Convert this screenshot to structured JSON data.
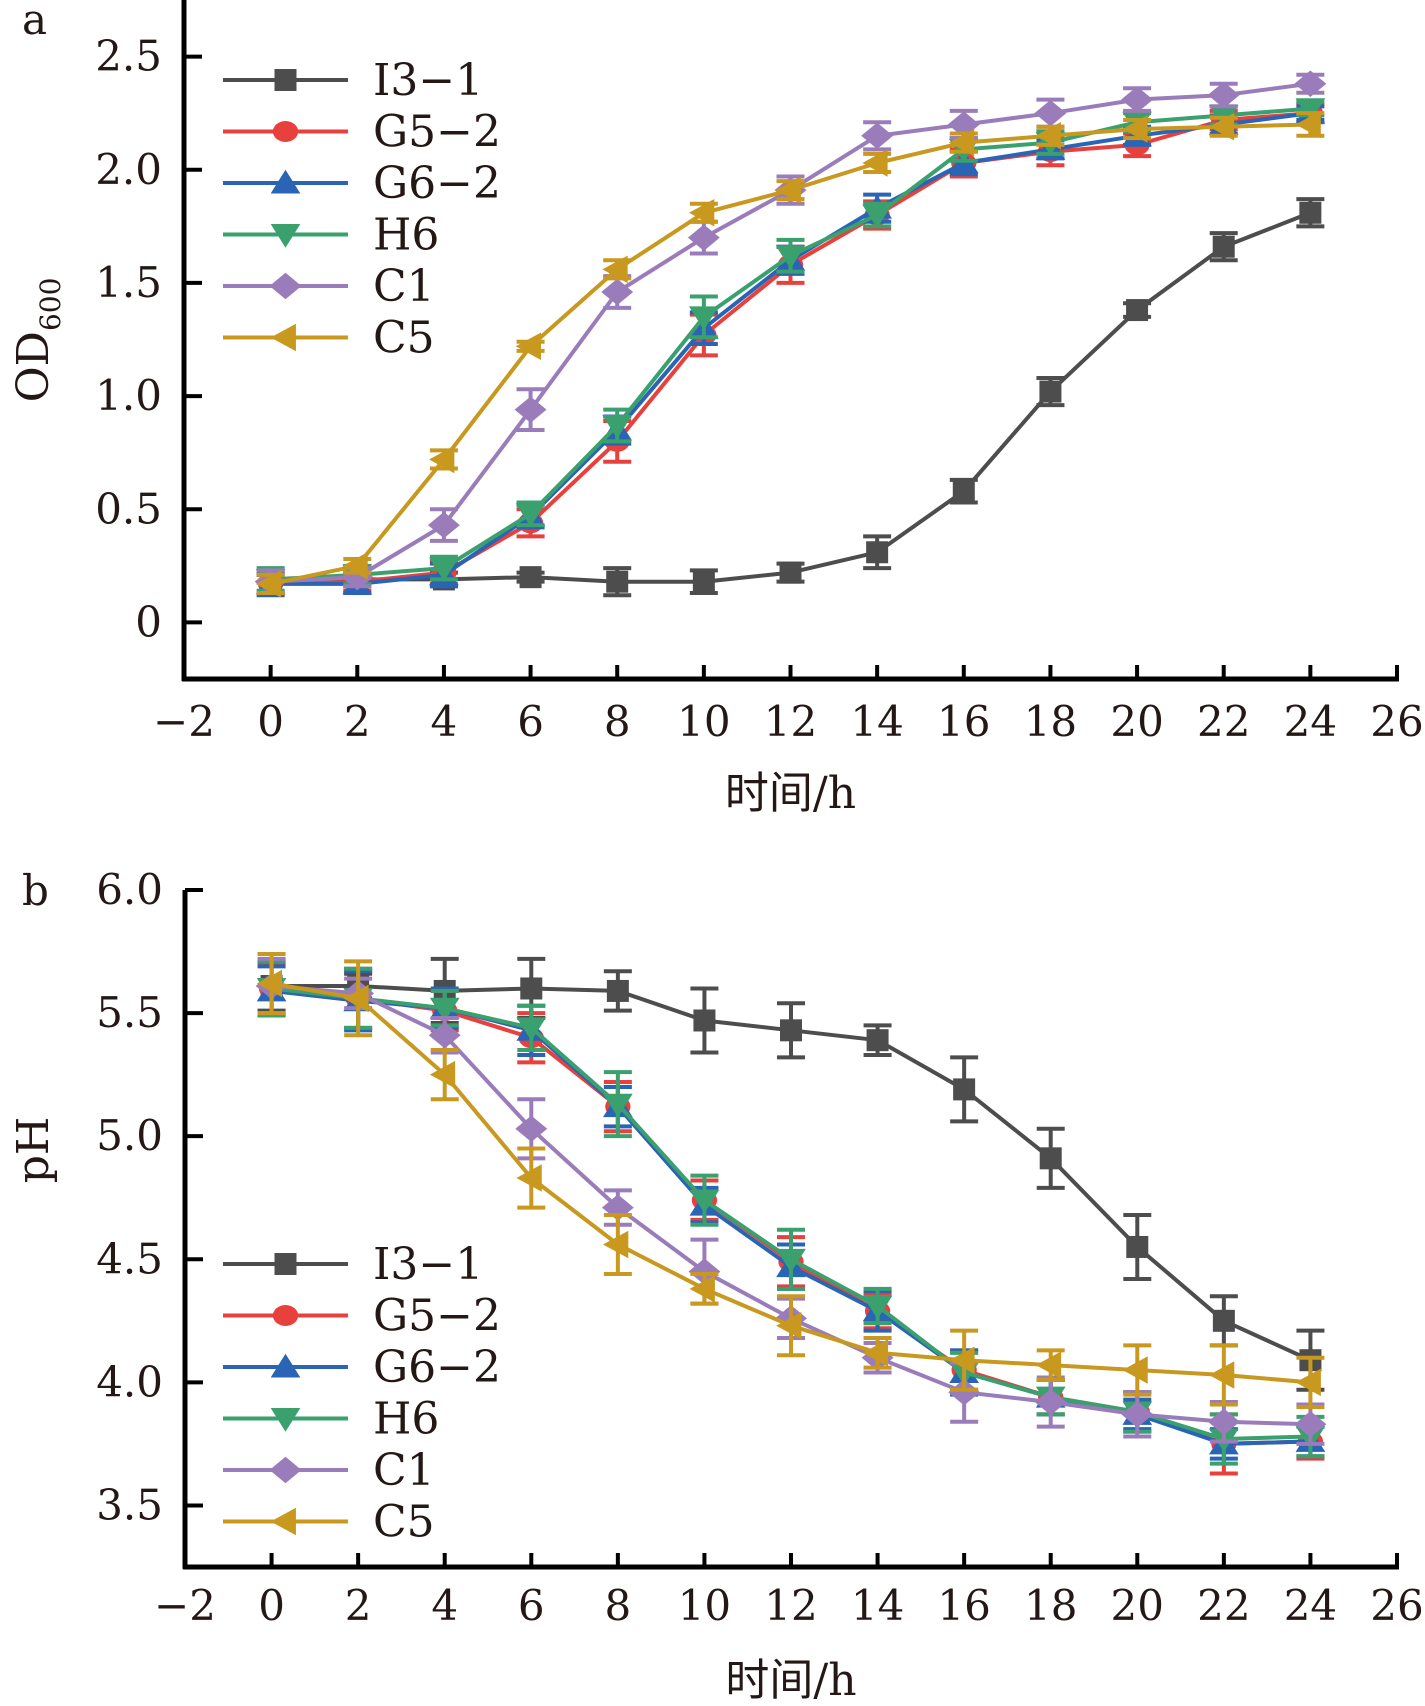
{
  "chart_data": [
    {
      "type": "line",
      "panel_label": "a",
      "title": "",
      "xlabel": "时间/h",
      "ylabel": "OD",
      "ylabel_subscript": "600",
      "xlim": [
        -2,
        26
      ],
      "ylim": [
        -0.25,
        2.75
      ],
      "xticks": [
        -2,
        0,
        2,
        4,
        6,
        8,
        10,
        12,
        14,
        16,
        18,
        20,
        22,
        24,
        26
      ],
      "xtick_labels": [
        "−2",
        "0",
        "2",
        "4",
        "6",
        "8",
        "10",
        "12",
        "14",
        "16",
        "18",
        "20",
        "22",
        "24",
        "26"
      ],
      "yticks": [
        0,
        0.5,
        1.0,
        1.5,
        2.0,
        2.5
      ],
      "ytick_labels": [
        "0",
        "0.5",
        "1.0",
        "1.5",
        "2.0",
        "2.5"
      ],
      "grid": false,
      "legend_position": "top-left",
      "x": [
        0,
        2,
        4,
        6,
        8,
        10,
        12,
        14,
        16,
        18,
        20,
        22,
        24
      ],
      "series": [
        {
          "name": "I3−1",
          "color": "#4d4d4d",
          "marker": "square",
          "values": [
            0.17,
            0.19,
            0.19,
            0.2,
            0.18,
            0.18,
            0.22,
            0.31,
            0.58,
            1.02,
            1.38,
            1.66,
            1.81
          ],
          "errors": [
            0.04,
            0.03,
            0.03,
            0.02,
            0.06,
            0.05,
            0.04,
            0.07,
            0.05,
            0.06,
            0.03,
            0.06,
            0.06
          ]
        },
        {
          "name": "G5−2",
          "color": "#e8403c",
          "marker": "circle",
          "values": [
            0.17,
            0.18,
            0.22,
            0.44,
            0.8,
            1.27,
            1.58,
            1.8,
            2.03,
            2.08,
            2.11,
            2.22,
            2.25
          ],
          "errors": [
            0.04,
            0.04,
            0.05,
            0.06,
            0.09,
            0.09,
            0.08,
            0.06,
            0.06,
            0.06,
            0.05,
            0.04,
            0.04
          ]
        },
        {
          "name": "G6−2",
          "color": "#2a64b4",
          "marker": "triangle-up",
          "values": [
            0.17,
            0.17,
            0.21,
            0.47,
            0.85,
            1.3,
            1.6,
            1.83,
            2.03,
            2.09,
            2.15,
            2.2,
            2.25
          ],
          "errors": [
            0.05,
            0.04,
            0.05,
            0.05,
            0.06,
            0.07,
            0.06,
            0.06,
            0.05,
            0.04,
            0.04,
            0.04,
            0.03
          ]
        },
        {
          "name": "H6",
          "color": "#3aa06e",
          "marker": "triangle-down",
          "values": [
            0.19,
            0.21,
            0.24,
            0.48,
            0.87,
            1.35,
            1.62,
            1.8,
            2.09,
            2.12,
            2.21,
            2.24,
            2.27
          ],
          "errors": [
            0.05,
            0.04,
            0.05,
            0.05,
            0.07,
            0.09,
            0.07,
            0.05,
            0.05,
            0.05,
            0.04,
            0.04,
            0.03
          ]
        },
        {
          "name": "C1",
          "color": "#9b7cba",
          "marker": "diamond",
          "values": [
            0.18,
            0.2,
            0.43,
            0.94,
            1.46,
            1.7,
            1.91,
            2.15,
            2.2,
            2.25,
            2.31,
            2.33,
            2.38
          ],
          "errors": [
            0.05,
            0.04,
            0.07,
            0.09,
            0.07,
            0.07,
            0.06,
            0.06,
            0.06,
            0.06,
            0.05,
            0.05,
            0.04
          ]
        },
        {
          "name": "C5",
          "color": "#c8981f",
          "marker": "triangle-left",
          "values": [
            0.17,
            0.25,
            0.72,
            1.22,
            1.56,
            1.81,
            1.91,
            2.03,
            2.12,
            2.15,
            2.18,
            2.19,
            2.2
          ],
          "errors": [
            0.04,
            0.03,
            0.04,
            0.02,
            0.04,
            0.04,
            0.04,
            0.04,
            0.04,
            0.04,
            0.04,
            0.04,
            0.05
          ]
        }
      ]
    },
    {
      "type": "line",
      "panel_label": "b",
      "title": "",
      "xlabel": "时间/h",
      "ylabel": "pH",
      "xlim": [
        -2,
        26
      ],
      "ylim": [
        3.25,
        6.0
      ],
      "xticks": [
        -2,
        0,
        2,
        4,
        6,
        8,
        10,
        12,
        14,
        16,
        18,
        20,
        22,
        24,
        26
      ],
      "xtick_labels": [
        "−2",
        "0",
        "2",
        "4",
        "6",
        "8",
        "10",
        "12",
        "14",
        "16",
        "18",
        "20",
        "22",
        "24",
        "26"
      ],
      "yticks": [
        3.5,
        4.0,
        4.5,
        5.0,
        5.5,
        6.0
      ],
      "ytick_labels": [
        "3.5",
        "4.0",
        "4.5",
        "5.0",
        "5.5",
        "6.0"
      ],
      "grid": false,
      "legend_position": "bottom-left",
      "x": [
        0,
        2,
        4,
        6,
        8,
        10,
        12,
        14,
        16,
        18,
        20,
        22,
        24
      ],
      "series": [
        {
          "name": "I3−1",
          "color": "#4d4d4d",
          "marker": "square",
          "values": [
            5.61,
            5.61,
            5.59,
            5.6,
            5.59,
            5.47,
            5.43,
            5.39,
            5.19,
            4.91,
            4.55,
            4.25,
            4.09
          ],
          "errors": [
            0.1,
            0.05,
            0.13,
            0.12,
            0.08,
            0.13,
            0.11,
            0.06,
            0.13,
            0.12,
            0.13,
            0.1,
            0.12
          ]
        },
        {
          "name": "G5−2",
          "color": "#e8403c",
          "marker": "circle",
          "values": [
            5.6,
            5.56,
            5.51,
            5.4,
            5.12,
            4.74,
            4.49,
            4.29,
            4.05,
            3.94,
            3.88,
            3.75,
            3.76
          ],
          "errors": [
            0.1,
            0.12,
            0.08,
            0.1,
            0.1,
            0.08,
            0.1,
            0.07,
            0.08,
            0.07,
            0.08,
            0.12,
            0.07
          ]
        },
        {
          "name": "G6−2",
          "color": "#2a64b4",
          "marker": "triangle-up",
          "values": [
            5.59,
            5.55,
            5.52,
            5.43,
            5.12,
            4.72,
            4.47,
            4.29,
            4.04,
            3.94,
            3.87,
            3.75,
            3.76
          ],
          "errors": [
            0.1,
            0.12,
            0.08,
            0.1,
            0.08,
            0.07,
            0.09,
            0.08,
            0.09,
            0.07,
            0.06,
            0.06,
            0.06
          ]
        },
        {
          "name": "H6",
          "color": "#3aa06e",
          "marker": "triangle-down",
          "values": [
            5.6,
            5.56,
            5.52,
            5.44,
            5.13,
            4.74,
            4.5,
            4.31,
            4.04,
            3.94,
            3.88,
            3.77,
            3.78
          ],
          "errors": [
            0.11,
            0.12,
            0.07,
            0.09,
            0.13,
            0.1,
            0.12,
            0.07,
            0.08,
            0.07,
            0.08,
            0.1,
            0.08
          ]
        },
        {
          "name": "C1",
          "color": "#9b7cba",
          "marker": "diamond",
          "values": [
            5.61,
            5.58,
            5.41,
            5.03,
            4.71,
            4.45,
            4.26,
            4.1,
            3.96,
            3.92,
            3.87,
            3.84,
            3.83
          ],
          "errors": [
            0.11,
            0.06,
            0.07,
            0.12,
            0.07,
            0.13,
            0.08,
            0.06,
            0.12,
            0.1,
            0.09,
            0.08,
            0.08
          ]
        },
        {
          "name": "C5",
          "color": "#c8981f",
          "marker": "triangle-left",
          "values": [
            5.62,
            5.56,
            5.25,
            4.83,
            4.56,
            4.38,
            4.23,
            4.12,
            4.09,
            4.07,
            4.05,
            4.03,
            4.0
          ],
          "errors": [
            0.12,
            0.15,
            0.1,
            0.12,
            0.12,
            0.06,
            0.12,
            0.06,
            0.12,
            0.06,
            0.1,
            0.12,
            0.1
          ]
        }
      ]
    }
  ]
}
